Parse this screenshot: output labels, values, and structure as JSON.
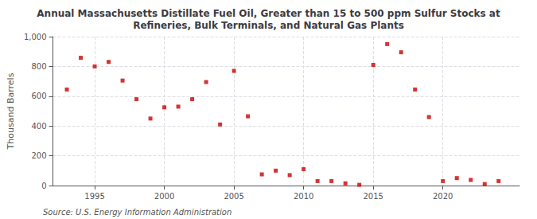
{
  "chart_data": {
    "type": "scatter",
    "title": "Annual Massachusetts Distillate Fuel Oil, Greater than 15 to 500 ppm Sulfur Stocks at\nRefineries, Bulk Terminals, and Natural Gas Plants",
    "ylabel": "Thousand Barrels",
    "annotations": [
      "Source: U.S. Energy Information Administration"
    ],
    "x": [
      1993,
      1994,
      1995,
      1996,
      1997,
      1998,
      1999,
      2000,
      2001,
      2002,
      2003,
      2004,
      2005,
      2006,
      2007,
      2008,
      2009,
      2010,
      2011,
      2012,
      2013,
      2014,
      2015,
      2016,
      2017,
      2018,
      2019,
      2020,
      2021,
      2022,
      2023,
      2024
    ],
    "values": [
      645,
      858,
      800,
      830,
      705,
      580,
      450,
      525,
      530,
      580,
      695,
      410,
      770,
      465,
      75,
      100,
      70,
      110,
      30,
      30,
      15,
      5,
      810,
      950,
      895,
      645,
      460,
      30,
      50,
      38,
      10,
      30
    ],
    "color": "#cc0000",
    "marker": "square",
    "xlim": [
      1992.0,
      2025.5
    ],
    "xticks": [
      1995,
      2000,
      2005,
      2010,
      2015,
      2020
    ],
    "ylim": [
      0,
      1000
    ],
    "yticks": [
      0,
      200,
      400,
      600,
      800,
      {
        "value": 1000,
        "label": "1,000"
      }
    ],
    "grid": true
  }
}
